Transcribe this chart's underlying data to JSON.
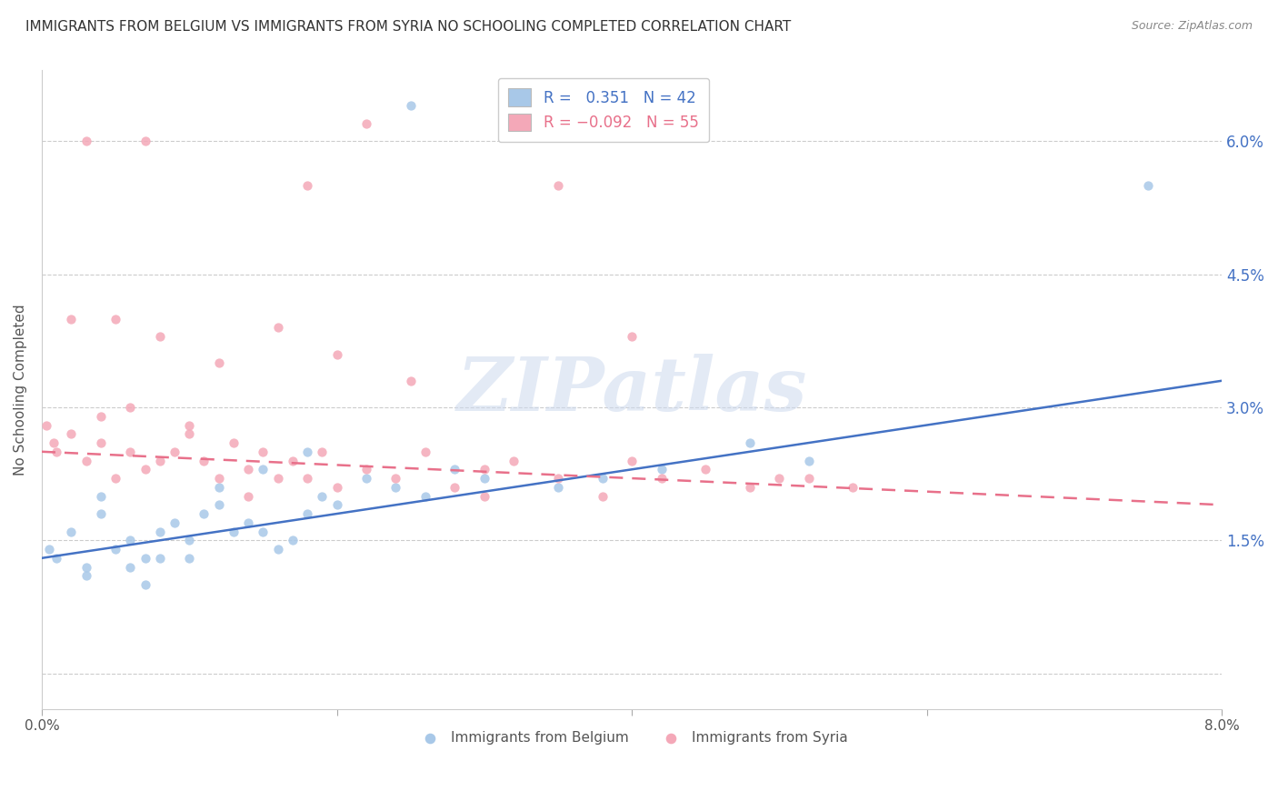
{
  "title": "IMMIGRANTS FROM BELGIUM VS IMMIGRANTS FROM SYRIA NO SCHOOLING COMPLETED CORRELATION CHART",
  "source": "Source: ZipAtlas.com",
  "ylabel": "No Schooling Completed",
  "yticks": [
    0.0,
    0.015,
    0.03,
    0.045,
    0.06
  ],
  "ytick_labels_right": [
    "",
    "1.5%",
    "3.0%",
    "4.5%",
    "6.0%"
  ],
  "xlim": [
    0.0,
    0.08
  ],
  "ylim": [
    -0.004,
    0.068
  ],
  "watermark": "ZIPatlas",
  "color_blue": "#A8C8E8",
  "color_pink": "#F4A8B8",
  "color_blue_line": "#4472C4",
  "color_pink_line": "#E8708A",
  "color_text_blue": "#4472C4",
  "color_text_pink": "#E8708A",
  "blue_trend_x": [
    0.0,
    0.08
  ],
  "blue_trend_y": [
    0.013,
    0.033
  ],
  "pink_trend_x": [
    0.0,
    0.08
  ],
  "pink_trend_y": [
    0.025,
    0.019
  ],
  "blue_x": [
    0.0005,
    0.001,
    0.002,
    0.003,
    0.004,
    0.005,
    0.006,
    0.007,
    0.008,
    0.009,
    0.01,
    0.011,
    0.012,
    0.013,
    0.014,
    0.015,
    0.016,
    0.017,
    0.018,
    0.019,
    0.02,
    0.022,
    0.024,
    0.026,
    0.028,
    0.03,
    0.025,
    0.018,
    0.015,
    0.012,
    0.008,
    0.006,
    0.004,
    0.035,
    0.038,
    0.042,
    0.048,
    0.052,
    0.075,
    0.003,
    0.007,
    0.01
  ],
  "blue_y": [
    0.014,
    0.013,
    0.016,
    0.012,
    0.018,
    0.014,
    0.015,
    0.013,
    0.016,
    0.017,
    0.013,
    0.018,
    0.019,
    0.016,
    0.017,
    0.016,
    0.014,
    0.015,
    0.018,
    0.02,
    0.019,
    0.022,
    0.021,
    0.02,
    0.023,
    0.022,
    0.064,
    0.025,
    0.023,
    0.021,
    0.013,
    0.012,
    0.02,
    0.021,
    0.022,
    0.023,
    0.026,
    0.024,
    0.055,
    0.011,
    0.01,
    0.015
  ],
  "pink_x": [
    0.0003,
    0.0008,
    0.001,
    0.002,
    0.003,
    0.004,
    0.005,
    0.006,
    0.007,
    0.008,
    0.009,
    0.01,
    0.011,
    0.012,
    0.013,
    0.014,
    0.015,
    0.016,
    0.017,
    0.018,
    0.019,
    0.02,
    0.022,
    0.024,
    0.026,
    0.028,
    0.03,
    0.032,
    0.035,
    0.038,
    0.04,
    0.042,
    0.045,
    0.048,
    0.05,
    0.052,
    0.055,
    0.04,
    0.022,
    0.007,
    0.003,
    0.005,
    0.008,
    0.012,
    0.016,
    0.02,
    0.025,
    0.01,
    0.006,
    0.004,
    0.002,
    0.03,
    0.018,
    0.014,
    0.035
  ],
  "pink_y": [
    0.028,
    0.026,
    0.025,
    0.027,
    0.024,
    0.026,
    0.022,
    0.025,
    0.023,
    0.024,
    0.025,
    0.027,
    0.024,
    0.022,
    0.026,
    0.023,
    0.025,
    0.022,
    0.024,
    0.022,
    0.025,
    0.021,
    0.023,
    0.022,
    0.025,
    0.021,
    0.023,
    0.024,
    0.022,
    0.02,
    0.024,
    0.022,
    0.023,
    0.021,
    0.022,
    0.022,
    0.021,
    0.038,
    0.062,
    0.06,
    0.06,
    0.04,
    0.038,
    0.035,
    0.039,
    0.036,
    0.033,
    0.028,
    0.03,
    0.029,
    0.04,
    0.02,
    0.055,
    0.02,
    0.055
  ]
}
